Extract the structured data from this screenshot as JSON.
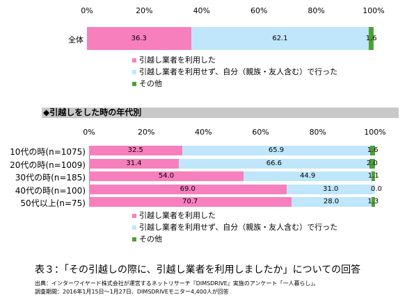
{
  "colors": {
    "used_mover": "#f77fbd",
    "self": "#bfe6fb",
    "other": "#4ea032"
  },
  "section_title": "◆引越しをした時の年代別",
  "caption": "表３：「その引越しの際に、引越し業者を利用しましたか」についての回答",
  "source_line": "出典：インターワイヤード株式会社が運営するネットリサーチ『DIMSDRIVE』実施のアンケート「一人暮らし」。",
  "period_line": "調査期間：2016年1月15日～1月27日、DIMSDRIVEモニター4,400人が回答",
  "chart_data": [
    {
      "type": "bar",
      "orientation": "horizontal",
      "stacked": true,
      "x_ticks": [
        "0%",
        "20%",
        "40%",
        "60%",
        "80%",
        "100%"
      ],
      "xlim": [
        0,
        100
      ],
      "categories": [
        "全体"
      ],
      "series": [
        {
          "name": "引越し業者を利用した",
          "values": [
            36.3
          ],
          "labels": [
            "36.3"
          ]
        },
        {
          "name": "引越し業者を利用せず、自分（親族・友人含む）で行った",
          "values": [
            62.1
          ],
          "labels": [
            "62.1"
          ]
        },
        {
          "name": "その他",
          "values": [
            1.6
          ],
          "labels": [
            "1.6"
          ]
        }
      ],
      "legend": [
        "引越し業者を利用した",
        "引越し業者を利用せず、自分（親族・友人含む）で行った",
        "その他"
      ],
      "legend_placement": "below"
    },
    {
      "type": "bar",
      "orientation": "horizontal",
      "stacked": true,
      "x_ticks": [
        "0%",
        "20%",
        "40%",
        "60%",
        "80%",
        "100%"
      ],
      "xlim": [
        0,
        100
      ],
      "categories": [
        "10代の時(n=1075)",
        "20代の時(n=1009)",
        "30代の時(n=185)",
        "40代の時(n=100)",
        "50代以上(n=75)"
      ],
      "series": [
        {
          "name": "引越し業者を利用した",
          "values": [
            32.5,
            31.4,
            54.0,
            69.0,
            70.7
          ],
          "labels": [
            "32.5",
            "31.4",
            "54.0",
            "69.0",
            "70.7"
          ]
        },
        {
          "name": "引越し業者を利用せず、自分（親族・友人含む）で行った",
          "values": [
            65.9,
            66.6,
            44.9,
            31.0,
            28.0
          ],
          "labels": [
            "65.9",
            "66.6",
            "44.9",
            "31.0",
            "28.0"
          ]
        },
        {
          "name": "その他",
          "values": [
            1.6,
            2.0,
            1.1,
            0.0,
            1.3
          ],
          "labels": [
            "1.6",
            "2.0",
            "1.1",
            "0.0",
            "1.3"
          ]
        }
      ],
      "legend": [
        "引越し業者を利用した",
        "引越し業者を利用せず、自分（親族・友人含む）で行った",
        "その他"
      ],
      "legend_placement": "below"
    }
  ]
}
